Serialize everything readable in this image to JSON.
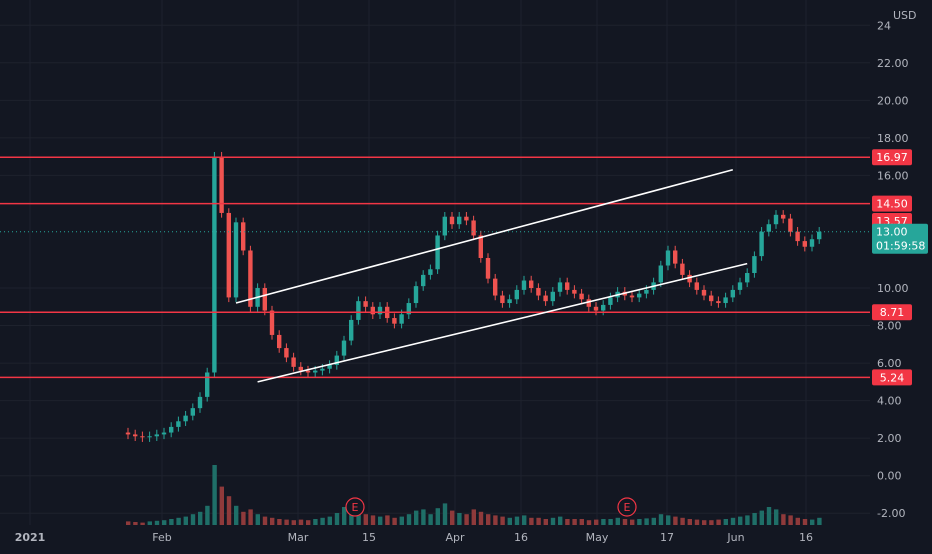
{
  "currency_label": "USD",
  "colors": {
    "background": "#131722",
    "grid": "#1e222d",
    "up": "#26a69a",
    "down": "#ef5350",
    "up_volume": "#1f6f68",
    "down_volume": "#8f3a3b",
    "level_line": "#f23645",
    "trend_line": "#ffffff",
    "axis_text": "#b2b5be"
  },
  "chart_data": {
    "type": "candlestick",
    "y_axis": {
      "position": "right",
      "range": [
        -2.2,
        24.6
      ],
      "ticks": [
        "24",
        "22.00",
        "20.00",
        "18.00",
        "16.00",
        "10.00",
        "8.00",
        "6.00",
        "4.00",
        "2.00",
        "0.00",
        "-2.00"
      ]
    },
    "x_axis": {
      "ticks": [
        "2021",
        "Feb",
        "Mar",
        "15",
        "Apr",
        "16",
        "May",
        "17",
        "Jun",
        "16"
      ]
    },
    "candles": [
      [
        2.3,
        2.2
      ],
      [
        2.2,
        2.1
      ],
      [
        2.1,
        2.05
      ],
      [
        2.05,
        2.1
      ],
      [
        2.1,
        2.2
      ],
      [
        2.2,
        2.3
      ],
      [
        2.3,
        2.6
      ],
      [
        2.6,
        2.9
      ],
      [
        2.9,
        3.2
      ],
      [
        3.2,
        3.6
      ],
      [
        3.6,
        4.2
      ],
      [
        4.2,
        5.5
      ],
      [
        5.5,
        17
      ],
      [
        17,
        14
      ],
      [
        14,
        9.5
      ],
      [
        9.5,
        13.5
      ],
      [
        13.5,
        12
      ],
      [
        12,
        9
      ],
      [
        9,
        10
      ],
      [
        10,
        8.8
      ],
      [
        8.8,
        7.5
      ],
      [
        7.5,
        6.8
      ],
      [
        6.8,
        6.3
      ],
      [
        6.3,
        5.8
      ],
      [
        5.8,
        5.6
      ],
      [
        5.6,
        5.5
      ],
      [
        5.5,
        5.6
      ],
      [
        5.6,
        5.7
      ],
      [
        5.7,
        5.9
      ],
      [
        5.9,
        6.4
      ],
      [
        6.4,
        7.2
      ],
      [
        7.2,
        8.3
      ],
      [
        8.3,
        9.3
      ],
      [
        9.3,
        9.0
      ],
      [
        9.0,
        8.6
      ],
      [
        8.6,
        9.0
      ],
      [
        9.0,
        8.4
      ],
      [
        8.4,
        8.1
      ],
      [
        8.1,
        8.6
      ],
      [
        8.6,
        9.2
      ],
      [
        9.2,
        10.1
      ],
      [
        10.1,
        10.7
      ],
      [
        10.7,
        11.0
      ],
      [
        11.0,
        12.8
      ],
      [
        12.8,
        13.8
      ],
      [
        13.8,
        13.4
      ],
      [
        13.4,
        13.8
      ],
      [
        13.8,
        13.6
      ],
      [
        13.6,
        12.8
      ],
      [
        12.8,
        11.6
      ],
      [
        11.6,
        10.5
      ],
      [
        10.5,
        9.6
      ],
      [
        9.6,
        9.2
      ],
      [
        9.2,
        9.4
      ],
      [
        9.4,
        9.9
      ],
      [
        9.9,
        10.4
      ],
      [
        10.4,
        10.0
      ],
      [
        10.0,
        9.6
      ],
      [
        9.6,
        9.3
      ],
      [
        9.3,
        9.8
      ],
      [
        9.8,
        10.3
      ],
      [
        10.3,
        9.9
      ],
      [
        9.9,
        9.7
      ],
      [
        9.7,
        9.4
      ],
      [
        9.4,
        9.0
      ],
      [
        9.0,
        8.8
      ],
      [
        8.8,
        9.1
      ],
      [
        9.1,
        9.5
      ],
      [
        9.5,
        9.8
      ],
      [
        9.8,
        9.6
      ],
      [
        9.6,
        9.5
      ],
      [
        9.5,
        9.7
      ],
      [
        9.7,
        9.9
      ],
      [
        9.9,
        10.3
      ],
      [
        10.3,
        11.2
      ],
      [
        11.2,
        12.0
      ],
      [
        12.0,
        11.3
      ],
      [
        11.3,
        10.7
      ],
      [
        10.7,
        10.3
      ],
      [
        10.3,
        9.9
      ],
      [
        9.9,
        9.6
      ],
      [
        9.6,
        9.3
      ],
      [
        9.3,
        9.2
      ],
      [
        9.2,
        9.5
      ],
      [
        9.5,
        9.9
      ],
      [
        9.9,
        10.3
      ],
      [
        10.3,
        10.8
      ],
      [
        10.8,
        11.7
      ],
      [
        11.7,
        13.0
      ],
      [
        13.0,
        13.4
      ],
      [
        13.4,
        13.9
      ],
      [
        13.9,
        13.7
      ],
      [
        13.7,
        13.0
      ],
      [
        13.0,
        12.5
      ],
      [
        12.5,
        12.2
      ],
      [
        12.2,
        12.6
      ],
      [
        12.6,
        13.0
      ]
    ],
    "volume": [
      0.3,
      0.25,
      0.2,
      0.3,
      0.35,
      0.4,
      0.5,
      0.6,
      0.7,
      0.9,
      1.1,
      1.6,
      5.0,
      3.2,
      2.4,
      1.6,
      1.1,
      1.3,
      0.9,
      0.7,
      0.6,
      0.5,
      0.45,
      0.4,
      0.45,
      0.4,
      0.5,
      0.6,
      0.7,
      1.0,
      1.5,
      1.8,
      1.1,
      0.9,
      0.8,
      0.7,
      0.8,
      0.6,
      0.7,
      0.9,
      1.2,
      1.3,
      0.9,
      1.4,
      1.8,
      1.2,
      1.0,
      0.9,
      1.3,
      1.1,
      0.9,
      0.8,
      0.7,
      0.6,
      0.7,
      0.8,
      0.6,
      0.6,
      0.5,
      0.6,
      0.7,
      0.5,
      0.5,
      0.5,
      0.4,
      0.45,
      0.5,
      0.5,
      0.6,
      0.5,
      0.45,
      0.5,
      0.55,
      0.6,
      0.9,
      0.8,
      0.7,
      0.6,
      0.5,
      0.45,
      0.4,
      0.4,
      0.45,
      0.5,
      0.6,
      0.7,
      0.8,
      1.0,
      1.2,
      1.5,
      1.3,
      0.9,
      0.8,
      0.6,
      0.5,
      0.45,
      0.6
    ],
    "horizontal_levels": [
      "16.97",
      "14.50",
      "8.71",
      "5.24"
    ],
    "price_labels": {
      "current_price": "13.00",
      "countdown": "01:59:58",
      "hidden_price": "13.57"
    },
    "earnings_markers": [
      "E",
      "E"
    ],
    "channel_lines": [
      {
        "points": [
          [
            15,
            9.2
          ],
          [
            84,
            16.3
          ]
        ]
      },
      {
        "points": [
          [
            18,
            5.0
          ],
          [
            86,
            11.3
          ]
        ]
      }
    ]
  }
}
